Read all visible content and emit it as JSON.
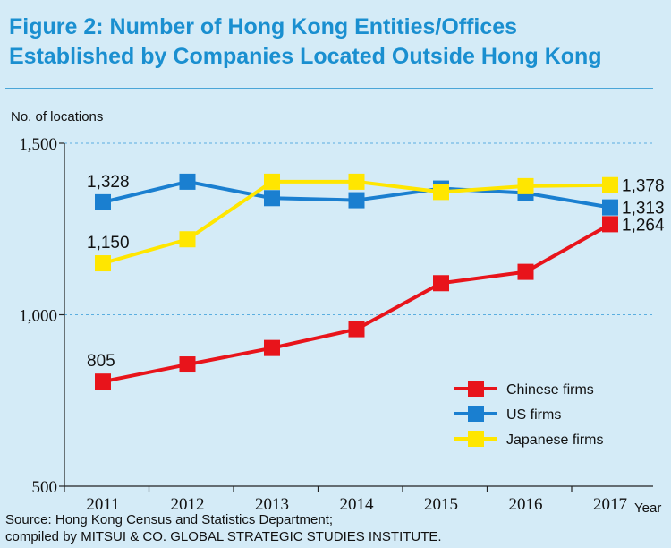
{
  "title_line1": "Figure 2: Number of Hong Kong Entities/Offices",
  "title_line2": "Established by Companies Located Outside Hong Kong",
  "source_line1": "Source: Hong Kong Census and Statistics Department;",
  "source_line2": "compiled by MITSUI & CO. GLOBAL STRATEGIC STUDIES INSTITUTE.",
  "chart_data": {
    "type": "line",
    "title": "Figure 2: Number of Hong Kong Entities/Offices Established by Companies Located Outside Hong Kong",
    "ylabel": "No. of locations",
    "xlabel": "Year",
    "x": [
      "2011",
      "2012",
      "2013",
      "2014",
      "2015",
      "2016",
      "2017"
    ],
    "ylim": [
      500,
      1500
    ],
    "yticks": [
      500,
      1000,
      1500
    ],
    "ytick_labels": [
      "500",
      "1,000",
      "1,500"
    ],
    "gridlines": [
      1000,
      1500
    ],
    "legend_position": "lower-right",
    "series": [
      {
        "name": "Chinese firms",
        "color": "#e8141b",
        "values": [
          805,
          855,
          903,
          958,
          1092,
          1125,
          1264
        ]
      },
      {
        "name": "US firms",
        "color": "#1a7fd0",
        "values": [
          1328,
          1388,
          1340,
          1334,
          1368,
          1355,
          1313
        ]
      },
      {
        "name": "Japanese firms",
        "color": "#ffe600",
        "values": [
          1150,
          1220,
          1388,
          1388,
          1358,
          1375,
          1378
        ]
      }
    ],
    "annotations": [
      {
        "text": "1,328",
        "series": "US firms",
        "x": "2011"
      },
      {
        "text": "1,150",
        "series": "Japanese firms",
        "x": "2011"
      },
      {
        "text": "805",
        "series": "Chinese firms",
        "x": "2011"
      },
      {
        "text": "1,378",
        "series": "Japanese firms",
        "x": "2017"
      },
      {
        "text": "1,313",
        "series": "US firms",
        "x": "2017"
      },
      {
        "text": "1,264",
        "series": "Chinese firms",
        "x": "2017"
      }
    ]
  }
}
